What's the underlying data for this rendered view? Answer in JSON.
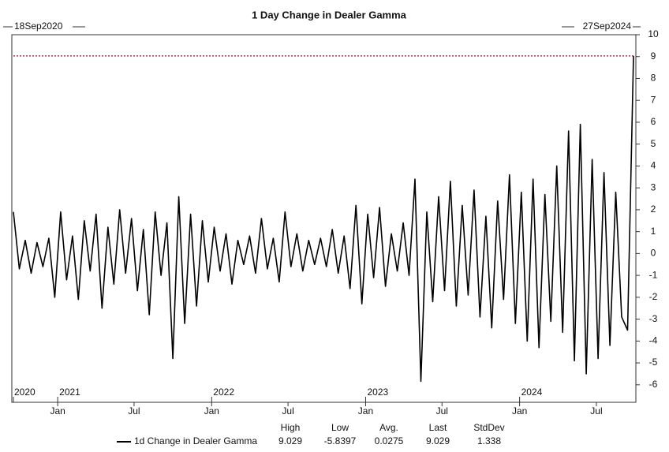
{
  "chart_data": {
    "type": "line",
    "title": "1 Day Change in Dealer Gamma",
    "start_label": "18Sep2020",
    "end_label": "27Sep2024",
    "x": [
      "2020-09-18",
      "2020-10-02",
      "2020-10-16",
      "2020-10-30",
      "2020-11-13",
      "2020-11-27",
      "2020-12-11",
      "2020-12-25",
      "2021-01-08",
      "2021-01-22",
      "2021-02-05",
      "2021-02-19",
      "2021-03-05",
      "2021-03-19",
      "2021-04-02",
      "2021-04-16",
      "2021-04-30",
      "2021-05-14",
      "2021-05-28",
      "2021-06-11",
      "2021-06-25",
      "2021-07-09",
      "2021-07-23",
      "2021-08-06",
      "2021-08-20",
      "2021-09-03",
      "2021-09-17",
      "2021-10-01",
      "2021-10-15",
      "2021-10-29",
      "2021-11-12",
      "2021-11-26",
      "2021-12-10",
      "2021-12-24",
      "2022-01-07",
      "2022-01-21",
      "2022-02-04",
      "2022-02-18",
      "2022-03-04",
      "2022-03-18",
      "2022-04-01",
      "2022-04-15",
      "2022-04-29",
      "2022-05-13",
      "2022-05-27",
      "2022-06-10",
      "2022-06-24",
      "2022-07-08",
      "2022-07-22",
      "2022-08-05",
      "2022-08-19",
      "2022-09-02",
      "2022-09-16",
      "2022-09-30",
      "2022-10-14",
      "2022-10-28",
      "2022-11-11",
      "2022-11-25",
      "2022-12-09",
      "2022-12-23",
      "2023-01-06",
      "2023-01-20",
      "2023-02-03",
      "2023-02-17",
      "2023-03-03",
      "2023-03-17",
      "2023-03-31",
      "2023-04-14",
      "2023-04-28",
      "2023-05-12",
      "2023-05-26",
      "2023-06-09",
      "2023-06-23",
      "2023-07-07",
      "2023-07-21",
      "2023-08-04",
      "2023-08-18",
      "2023-09-01",
      "2023-09-15",
      "2023-09-29",
      "2023-10-13",
      "2023-10-27",
      "2023-11-10",
      "2023-11-24",
      "2023-12-08",
      "2023-12-22",
      "2024-01-05",
      "2024-01-19",
      "2024-02-02",
      "2024-02-16",
      "2024-03-01",
      "2024-03-15",
      "2024-03-29",
      "2024-04-12",
      "2024-04-26",
      "2024-05-10",
      "2024-05-24",
      "2024-06-07",
      "2024-06-21",
      "2024-07-05",
      "2024-07-19",
      "2024-08-02",
      "2024-08-16",
      "2024-08-30",
      "2024-09-13",
      "2024-09-27"
    ],
    "xlim": [
      "2020-09-18",
      "2024-09-27"
    ],
    "xticks": [
      {
        "value": "2021-01-01",
        "label": "Jan"
      },
      {
        "value": "2021-07-01",
        "label": "Jul"
      },
      {
        "value": "2022-01-01",
        "label": "Jan"
      },
      {
        "value": "2022-07-01",
        "label": "Jul"
      },
      {
        "value": "2023-01-01",
        "label": "Jan"
      },
      {
        "value": "2023-07-01",
        "label": "Jul"
      },
      {
        "value": "2024-01-01",
        "label": "Jan"
      },
      {
        "value": "2024-07-01",
        "label": "Jul"
      }
    ],
    "year_labels": [
      {
        "value": "2020-09-18",
        "label": "2020"
      },
      {
        "value": "2021-01-01",
        "label": "2021"
      },
      {
        "value": "2022-01-01",
        "label": "2022"
      },
      {
        "value": "2023-01-01",
        "label": "2023"
      },
      {
        "value": "2024-01-01",
        "label": "2024"
      }
    ],
    "ylim": [
      -6.8,
      10
    ],
    "yticks": [
      -6,
      -5,
      -4,
      -3,
      -2,
      -1,
      0,
      1,
      2,
      3,
      4,
      5,
      6,
      7,
      8,
      9,
      10
    ],
    "hline": {
      "value": 9.029,
      "color": "#d03030"
    },
    "series": [
      {
        "name": "1d Change in Dealer Gamma",
        "color": "#000000",
        "values": [
          1.9,
          -0.7,
          0.6,
          -0.9,
          0.5,
          -0.6,
          0.7,
          -2.0,
          1.9,
          -1.2,
          0.8,
          -2.1,
          1.5,
          -0.8,
          1.8,
          -2.5,
          1.2,
          -1.4,
          2.0,
          -0.9,
          1.6,
          -1.7,
          1.1,
          -2.8,
          1.9,
          -1.0,
          1.4,
          -4.8,
          2.6,
          -3.2,
          1.8,
          -2.4,
          1.5,
          -1.3,
          1.2,
          -0.8,
          0.9,
          -1.4,
          0.6,
          -0.5,
          0.8,
          -0.9,
          1.6,
          -0.7,
          0.7,
          -1.3,
          1.9,
          -0.6,
          0.9,
          -0.8,
          0.6,
          -0.5,
          0.7,
          -0.6,
          1.1,
          -0.9,
          0.8,
          -1.6,
          2.2,
          -2.3,
          1.8,
          -1.1,
          2.1,
          -1.5,
          0.9,
          -0.8,
          1.4,
          -1.0,
          3.4,
          -5.8397,
          1.9,
          -2.2,
          2.6,
          -1.7,
          3.3,
          -2.4,
          2.2,
          -1.9,
          2.9,
          -2.9,
          1.7,
          -3.4,
          2.4,
          -2.1,
          3.6,
          -3.2,
          2.8,
          -4.0,
          3.4,
          -4.3,
          2.7,
          -3.1,
          4.0,
          -3.6,
          5.6,
          -4.9,
          5.9,
          -5.5,
          4.3,
          -4.8,
          3.7,
          -4.2,
          2.8,
          -2.9,
          -3.5,
          9.029
        ]
      }
    ],
    "stats": {
      "headers": [
        "High",
        "Low",
        "Avg.",
        "Last",
        "StdDev"
      ],
      "values": [
        9.029,
        -5.8397,
        0.0275,
        9.029,
        1.338
      ]
    }
  }
}
